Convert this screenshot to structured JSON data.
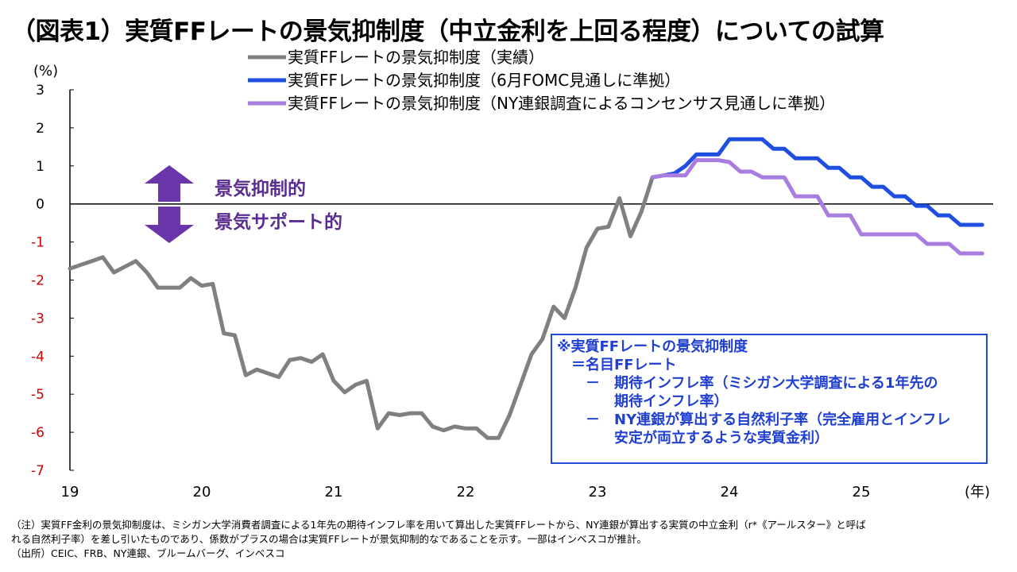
{
  "title": "（図表1）実質FFレートの景気抑制度（中立金利を上回る程度）についての試算",
  "chart_data": {
    "type": "line",
    "ylabel": "(%)",
    "xlabel": "(年)",
    "ylim": [
      -7,
      3
    ],
    "yticks": [
      "3",
      "2",
      "1",
      "0",
      "-1",
      "-2",
      "-3",
      "-4",
      "-5",
      "-6",
      "-7"
    ],
    "xticks": [
      "19",
      "20",
      "21",
      "22",
      "23",
      "24",
      "25"
    ],
    "grid": false,
    "legend_position": "top",
    "series": [
      {
        "name": "実質FFレートの景気抑制度（実績）",
        "color": "#808080",
        "x": [
          2019.0,
          2019.083,
          2019.167,
          2019.25,
          2019.333,
          2019.417,
          2019.5,
          2019.583,
          2019.667,
          2019.75,
          2019.833,
          2019.917,
          2020.0,
          2020.083,
          2020.167,
          2020.25,
          2020.333,
          2020.417,
          2020.5,
          2020.583,
          2020.667,
          2020.75,
          2020.833,
          2020.917,
          2021.0,
          2021.083,
          2021.167,
          2021.25,
          2021.333,
          2021.417,
          2021.5,
          2021.583,
          2021.667,
          2021.75,
          2021.833,
          2021.917,
          2022.0,
          2022.083,
          2022.167,
          2022.25,
          2022.333,
          2022.417,
          2022.5,
          2022.583,
          2022.667,
          2022.75,
          2022.833,
          2022.917,
          2023.0,
          2023.083,
          2023.167,
          2023.25,
          2023.333,
          2023.417
        ],
        "values": [
          -1.7,
          -1.6,
          -1.5,
          -1.4,
          -1.8,
          -1.65,
          -1.5,
          -1.8,
          -2.2,
          -2.2,
          -2.2,
          -1.95,
          -2.15,
          -2.1,
          -3.4,
          -3.45,
          -4.5,
          -4.35,
          -4.45,
          -4.55,
          -4.1,
          -4.05,
          -4.15,
          -3.95,
          -4.65,
          -4.95,
          -4.75,
          -4.65,
          -5.9,
          -5.5,
          -5.55,
          -5.5,
          -5.5,
          -5.85,
          -5.95,
          -5.85,
          -5.9,
          -5.9,
          -6.15,
          -6.15,
          -5.55,
          -4.75,
          -3.95,
          -3.55,
          -2.7,
          -3.0,
          -2.2,
          -1.15,
          -0.65,
          -0.6,
          0.15,
          -0.85,
          -0.2,
          0.7
        ]
      },
      {
        "name": "実質FFレートの景気抑制度（6月FOMC見通しに準拠）",
        "color": "#1f4fe0",
        "x": [
          2023.417,
          2023.5,
          2023.583,
          2023.667,
          2023.75,
          2023.833,
          2023.917,
          2024.0,
          2024.083,
          2024.167,
          2024.25,
          2024.333,
          2024.417,
          2024.5,
          2024.583,
          2024.667,
          2024.75,
          2024.833,
          2024.917,
          2025.0,
          2025.083,
          2025.167,
          2025.25,
          2025.333,
          2025.417,
          2025.5,
          2025.583,
          2025.667,
          2025.75,
          2025.833,
          2025.917
        ],
        "values": [
          0.7,
          0.75,
          0.8,
          1.0,
          1.3,
          1.3,
          1.3,
          1.7,
          1.7,
          1.7,
          1.7,
          1.45,
          1.45,
          1.2,
          1.2,
          1.2,
          0.95,
          0.95,
          0.7,
          0.7,
          0.45,
          0.45,
          0.2,
          0.2,
          -0.05,
          -0.05,
          -0.3,
          -0.3,
          -0.55,
          -0.55,
          -0.55
        ]
      },
      {
        "name": "実質FFレートの景気抑制度（NY連銀調査によるコンセンサス見通しに準拠）",
        "color": "#a97ce0",
        "x": [
          2023.417,
          2023.5,
          2023.583,
          2023.667,
          2023.75,
          2023.833,
          2023.917,
          2024.0,
          2024.083,
          2024.167,
          2024.25,
          2024.333,
          2024.417,
          2024.5,
          2024.583,
          2024.667,
          2024.75,
          2024.833,
          2024.917,
          2025.0,
          2025.083,
          2025.167,
          2025.25,
          2025.333,
          2025.417,
          2025.5,
          2025.583,
          2025.667,
          2025.75,
          2025.833,
          2025.917
        ],
        "values": [
          0.7,
          0.75,
          0.75,
          0.75,
          1.15,
          1.15,
          1.15,
          1.1,
          0.85,
          0.85,
          0.7,
          0.7,
          0.7,
          0.2,
          0.2,
          0.2,
          -0.3,
          -0.3,
          -0.3,
          -0.8,
          -0.8,
          -0.8,
          -0.8,
          -0.8,
          -0.8,
          -1.05,
          -1.05,
          -1.05,
          -1.3,
          -1.3,
          -1.3
        ]
      }
    ],
    "annotations": [
      "景気抑制的",
      "景気サポート的"
    ]
  },
  "note_box": {
    "lines": [
      "※実質FFレートの景気抑制度",
      "　＝名目FFレート",
      "　　－　期待インフレ率（ミシガン大学調査による1年先の",
      "　　　　期待インフレ率）",
      "　　－　NY連銀が算出する自然利子率（完全雇用とインフレ",
      "　　　　安定が両立するような実質金利）"
    ]
  },
  "footnote": {
    "line1": "（注）実質FF金利の景気抑制度は、ミシガン大学消費者調査による1年先の期待インフレ率を用いて算出した実質FFレートから、NY連銀が算出する実質の中立金利（r*《アールスター》と呼ば",
    "line2": "れる自然利子率）を差し引いたものであり、係数がプラスの場合は実質FFレートが景気抑制的なであることを示す。一部はインベスコが推計。",
    "line3": "（出所）CEIC、FRB、NY連銀、ブルームバーグ、インベスコ"
  },
  "colors": {
    "arrow": "#6a35a8",
    "negative_tick": "#d00000",
    "note_border": "#1f4bd8"
  }
}
